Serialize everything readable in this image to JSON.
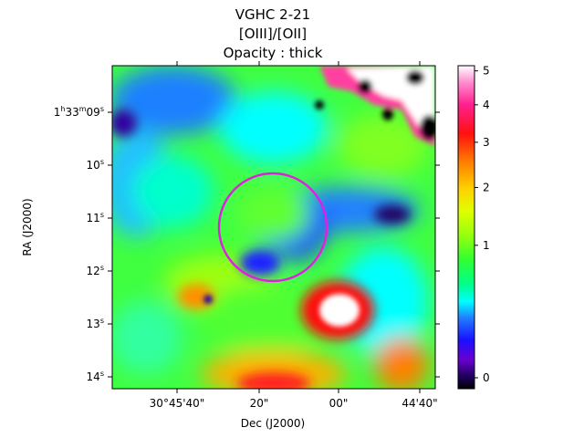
{
  "chart_data": {
    "type": "heatmap",
    "title_lines": [
      "VGHC 2-21",
      "[OIII]/[OII]",
      "Opacity : thick"
    ],
    "xlabel": "Dec (J2000)",
    "ylabel": "RA (J2000)",
    "x_ticks": [
      "30°45'40\"",
      "20\"",
      "00\"",
      "44'40\""
    ],
    "y_ticks": [
      {
        "prefix": "1",
        "h": "h",
        "mid": "33",
        "m": "m",
        "sec": "09",
        "s": "s"
      },
      {
        "prefix": "",
        "h": "",
        "mid": "",
        "m": "",
        "sec": "10",
        "s": "s"
      },
      {
        "prefix": "",
        "h": "",
        "mid": "",
        "m": "",
        "sec": "11",
        "s": "s"
      },
      {
        "prefix": "",
        "h": "",
        "mid": "",
        "m": "",
        "sec": "12",
        "s": "s"
      },
      {
        "prefix": "",
        "h": "",
        "mid": "",
        "m": "",
        "sec": "13",
        "s": "s"
      },
      {
        "prefix": "",
        "h": "",
        "mid": "",
        "m": "",
        "sec": "14",
        "s": "s"
      }
    ],
    "colorbar": {
      "colormap": "gist_ncar-like",
      "range": [
        -0.1,
        5.2
      ],
      "ticks": [
        {
          "label": "5",
          "value": 5
        },
        {
          "label": "4",
          "value": 4
        },
        {
          "label": "3",
          "value": 3
        },
        {
          "label": "2",
          "value": 2
        },
        {
          "label": "1",
          "value": 1
        },
        {
          "label": "0",
          "value": 0
        }
      ]
    },
    "aperture_circle": {
      "color": "#e020e0"
    },
    "features": [
      {
        "name": "bright-knot",
        "value": 5.0
      },
      {
        "name": "small-knot",
        "value": 3.0
      },
      {
        "name": "central-region",
        "value": 1.3
      },
      {
        "name": "top-right-masked",
        "value": 0
      }
    ]
  }
}
